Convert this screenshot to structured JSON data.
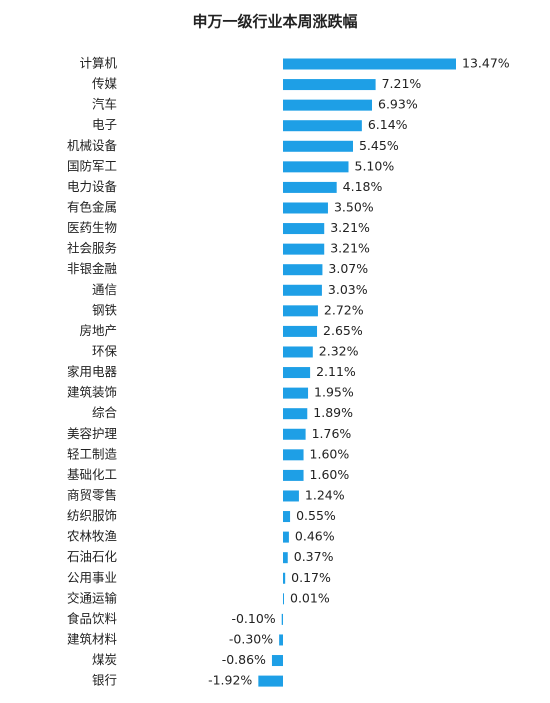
{
  "chart_data": {
    "type": "bar",
    "orientation": "horizontal",
    "title": "申万一级行业本周涨跌幅",
    "categories": [
      "计算机",
      "传媒",
      "汽车",
      "电子",
      "机械设备",
      "国防军工",
      "电力设备",
      "有色金属",
      "医药生物",
      "社会服务",
      "非银金融",
      "通信",
      "钢铁",
      "房地产",
      "环保",
      "家用电器",
      "建筑装饰",
      "综合",
      "美容护理",
      "轻工制造",
      "基础化工",
      "商贸零售",
      "纺织服饰",
      "农林牧渔",
      "石油石化",
      "公用事业",
      "交通运输",
      "食品饮料",
      "建筑材料",
      "煤炭",
      "银行"
    ],
    "values": [
      13.47,
      7.21,
      6.93,
      6.14,
      5.45,
      5.1,
      4.18,
      3.5,
      3.21,
      3.21,
      3.07,
      3.03,
      2.72,
      2.65,
      2.32,
      2.11,
      1.95,
      1.89,
      1.76,
      1.6,
      1.6,
      1.24,
      0.55,
      0.46,
      0.37,
      0.17,
      0.01,
      -0.1,
      -0.3,
      -0.86,
      -1.92
    ],
    "value_labels": [
      "13.47%",
      "7.21%",
      "6.93%",
      "6.14%",
      "5.45%",
      "5.10%",
      "4.18%",
      "3.50%",
      "3.21%",
      "3.21%",
      "3.07%",
      "3.03%",
      "2.72%",
      "2.65%",
      "2.32%",
      "2.11%",
      "1.95%",
      "1.89%",
      "1.76%",
      "1.60%",
      "1.60%",
      "1.24%",
      "0.55%",
      "0.46%",
      "0.37%",
      "0.17%",
      "0.01%",
      "-0.10%",
      "-0.30%",
      "-0.86%",
      "-1.92%"
    ],
    "color": "#1e9fe6"
  }
}
